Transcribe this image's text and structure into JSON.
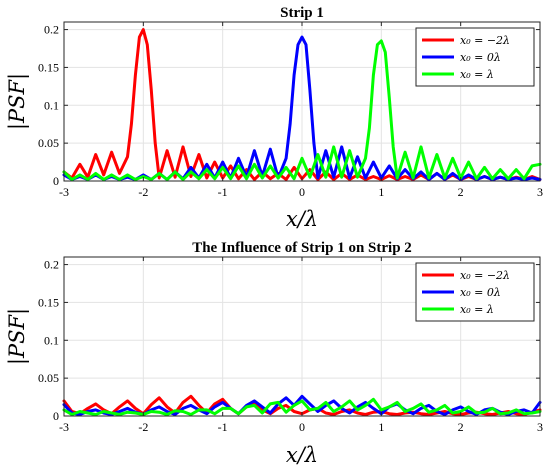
{
  "chart_data": [
    {
      "type": "line",
      "title": "Strip 1",
      "xlabel": "x/λ",
      "ylabel": "|PSF|",
      "xlim": [
        -3,
        3
      ],
      "ylim": [
        0,
        0.21
      ],
      "xticks": [
        "-3",
        "-2",
        "-1",
        "0",
        "1",
        "2",
        "3"
      ],
      "yticks": [
        "0",
        "0.05",
        "0.1",
        "0.15",
        "0.2"
      ],
      "grid": true,
      "legend_position": "top-right",
      "series": [
        {
          "name": "x₀ = −2λ",
          "color": "#ff0000",
          "x": [
            -3,
            -2.9,
            -2.8,
            -2.7,
            -2.6,
            -2.5,
            -2.4,
            -2.3,
            -2.2,
            -2.15,
            -2.1,
            -2.05,
            -2.0,
            -1.95,
            -1.9,
            -1.85,
            -1.8,
            -1.7,
            -1.6,
            -1.5,
            -1.4,
            -1.3,
            -1.2,
            -1.1,
            -1.0,
            -0.9,
            -0.8,
            -0.7,
            -0.6,
            -0.5,
            -0.4,
            -0.3,
            -0.2,
            -0.1,
            0,
            0.1,
            0.2,
            0.3,
            0.4,
            0.5,
            0.6,
            0.7,
            0.8,
            0.9,
            1.0,
            1.1,
            1.2,
            1.3,
            1.4,
            1.5,
            1.6,
            1.7,
            1.8,
            1.9,
            2.0,
            2.1,
            2.2,
            2.3,
            2.4,
            2.5,
            2.6,
            2.7,
            2.8,
            2.9,
            3.0
          ],
          "y": [
            0.012,
            0.004,
            0.022,
            0.005,
            0.035,
            0.008,
            0.038,
            0.01,
            0.032,
            0.075,
            0.14,
            0.19,
            0.2,
            0.18,
            0.12,
            0.05,
            0.004,
            0.04,
            0.005,
            0.045,
            0.006,
            0.035,
            0.004,
            0.025,
            0.004,
            0.02,
            0.003,
            0.015,
            0.002,
            0.012,
            0.003,
            0.01,
            0.002,
            0.018,
            0.003,
            0.015,
            0.002,
            0.012,
            0.002,
            0.01,
            0.002,
            0.008,
            0.002,
            0.006,
            0.002,
            0.007,
            0.002,
            0.006,
            0.002,
            0.008,
            0.002,
            0.01,
            0.002,
            0.008,
            0.002,
            0.006,
            0.002,
            0.006,
            0.002,
            0.005,
            0.002,
            0.005,
            0.002,
            0.006,
            0.002
          ]
        },
        {
          "name": "x₀ = 0λ",
          "color": "#0000ff",
          "x": [
            -3,
            -2.9,
            -2.8,
            -2.7,
            -2.6,
            -2.5,
            -2.4,
            -2.3,
            -2.2,
            -2.1,
            -2.0,
            -1.9,
            -1.8,
            -1.7,
            -1.6,
            -1.5,
            -1.4,
            -1.3,
            -1.2,
            -1.1,
            -1.0,
            -0.9,
            -0.8,
            -0.7,
            -0.6,
            -0.5,
            -0.4,
            -0.3,
            -0.2,
            -0.15,
            -0.1,
            -0.05,
            0,
            0.05,
            0.1,
            0.15,
            0.2,
            0.3,
            0.4,
            0.5,
            0.6,
            0.7,
            0.8,
            0.9,
            1.0,
            1.1,
            1.2,
            1.3,
            1.4,
            1.5,
            1.6,
            1.7,
            1.8,
            1.9,
            2.0,
            2.1,
            2.2,
            2.3,
            2.4,
            2.5,
            2.6,
            2.7,
            2.8,
            2.9,
            3.0
          ],
          "y": [
            0.008,
            0.002,
            0.006,
            0.002,
            0.008,
            0.002,
            0.006,
            0.002,
            0.005,
            0.002,
            0.008,
            0.002,
            0.01,
            0.002,
            0.012,
            0.003,
            0.018,
            0.004,
            0.022,
            0.004,
            0.025,
            0.004,
            0.03,
            0.005,
            0.04,
            0.006,
            0.042,
            0.004,
            0.03,
            0.075,
            0.14,
            0.18,
            0.19,
            0.18,
            0.12,
            0.05,
            0.004,
            0.04,
            0.005,
            0.045,
            0.004,
            0.032,
            0.004,
            0.025,
            0.004,
            0.02,
            0.003,
            0.015,
            0.003,
            0.012,
            0.002,
            0.01,
            0.002,
            0.01,
            0.002,
            0.008,
            0.002,
            0.006,
            0.002,
            0.005,
            0.002,
            0.004,
            0.002,
            0.004,
            0.002
          ]
        },
        {
          "name": "x₀ = λ",
          "color": "#00ff00",
          "x": [
            -3,
            -2.9,
            -2.8,
            -2.7,
            -2.6,
            -2.5,
            -2.4,
            -2.3,
            -2.2,
            -2.1,
            -2.0,
            -1.9,
            -1.8,
            -1.7,
            -1.6,
            -1.5,
            -1.4,
            -1.3,
            -1.2,
            -1.1,
            -1.0,
            -0.9,
            -0.8,
            -0.7,
            -0.6,
            -0.5,
            -0.4,
            -0.3,
            -0.2,
            -0.1,
            0,
            0.1,
            0.2,
            0.3,
            0.4,
            0.5,
            0.6,
            0.7,
            0.8,
            0.85,
            0.9,
            0.95,
            1.0,
            1.05,
            1.1,
            1.15,
            1.2,
            1.3,
            1.4,
            1.5,
            1.6,
            1.7,
            1.8,
            1.9,
            2.0,
            2.1,
            2.2,
            2.3,
            2.4,
            2.5,
            2.6,
            2.7,
            2.8,
            2.9,
            3.0
          ],
          "y": [
            0.012,
            0.002,
            0.008,
            0.002,
            0.01,
            0.002,
            0.008,
            0.002,
            0.008,
            0.002,
            0.006,
            0.002,
            0.01,
            0.002,
            0.012,
            0.002,
            0.012,
            0.003,
            0.015,
            0.003,
            0.018,
            0.003,
            0.02,
            0.003,
            0.022,
            0.004,
            0.02,
            0.004,
            0.018,
            0.003,
            0.03,
            0.005,
            0.035,
            0.005,
            0.045,
            0.005,
            0.04,
            0.005,
            0.03,
            0.07,
            0.14,
            0.18,
            0.185,
            0.17,
            0.11,
            0.045,
            0.004,
            0.038,
            0.004,
            0.045,
            0.004,
            0.035,
            0.004,
            0.03,
            0.004,
            0.025,
            0.003,
            0.018,
            0.003,
            0.015,
            0.003,
            0.015,
            0.003,
            0.02,
            0.022
          ]
        }
      ]
    },
    {
      "type": "line",
      "title": "The Influence of Strip 1 on Strip 2",
      "xlabel": "x/λ",
      "ylabel": "|PSF|",
      "xlim": [
        -3,
        3
      ],
      "ylim": [
        0,
        0.21
      ],
      "xticks": [
        "-3",
        "-2",
        "-1",
        "0",
        "1",
        "2",
        "3"
      ],
      "yticks": [
        "0",
        "0.05",
        "0.1",
        "0.15",
        "0.2"
      ],
      "grid": true,
      "legend_position": "top-right",
      "series": [
        {
          "name": "x₀ = −2λ",
          "color": "#ff0000",
          "x": [
            -3,
            -2.9,
            -2.8,
            -2.7,
            -2.6,
            -2.5,
            -2.4,
            -2.3,
            -2.2,
            -2.1,
            -2.0,
            -1.9,
            -1.8,
            -1.7,
            -1.6,
            -1.5,
            -1.4,
            -1.3,
            -1.2,
            -1.1,
            -1.0,
            -0.9,
            -0.8,
            -0.7,
            -0.6,
            -0.5,
            -0.4,
            -0.3,
            -0.2,
            -0.1,
            0,
            0.1,
            0.2,
            0.3,
            0.4,
            0.5,
            0.6,
            0.7,
            0.8,
            0.9,
            1.0,
            1.1,
            1.2,
            1.3,
            1.4,
            1.5,
            1.6,
            1.7,
            1.8,
            1.9,
            2.0,
            2.1,
            2.2,
            2.3,
            2.4,
            2.5,
            2.6,
            2.7,
            2.8,
            2.9,
            3.0
          ],
          "y": [
            0.02,
            0.006,
            0.003,
            0.01,
            0.016,
            0.008,
            0.003,
            0.012,
            0.02,
            0.01,
            0.003,
            0.015,
            0.024,
            0.012,
            0.004,
            0.018,
            0.026,
            0.014,
            0.004,
            0.016,
            0.022,
            0.01,
            0.003,
            0.012,
            0.018,
            0.008,
            0.003,
            0.01,
            0.014,
            0.006,
            0.003,
            0.008,
            0.01,
            0.004,
            0.002,
            0.006,
            0.008,
            0.004,
            0.002,
            0.005,
            0.006,
            0.003,
            0.002,
            0.004,
            0.005,
            0.003,
            0.002,
            0.004,
            0.006,
            0.003,
            0.002,
            0.004,
            0.005,
            0.003,
            0.002,
            0.004,
            0.006,
            0.003,
            0.002,
            0.005,
            0.008
          ]
        },
        {
          "name": "x₀ = 0λ",
          "color": "#0000ff",
          "x": [
            -3,
            -2.9,
            -2.8,
            -2.7,
            -2.6,
            -2.5,
            -2.4,
            -2.3,
            -2.2,
            -2.1,
            -2.0,
            -1.9,
            -1.8,
            -1.7,
            -1.6,
            -1.5,
            -1.4,
            -1.3,
            -1.2,
            -1.1,
            -1.0,
            -0.9,
            -0.8,
            -0.7,
            -0.6,
            -0.5,
            -0.4,
            -0.3,
            -0.2,
            -0.1,
            0,
            0.1,
            0.2,
            0.3,
            0.4,
            0.5,
            0.6,
            0.7,
            0.8,
            0.9,
            1.0,
            1.1,
            1.2,
            1.3,
            1.4,
            1.5,
            1.6,
            1.7,
            1.8,
            1.9,
            2.0,
            2.1,
            2.2,
            2.3,
            2.4,
            2.5,
            2.6,
            2.7,
            2.8,
            2.9,
            3.0
          ],
          "y": [
            0.015,
            0.004,
            0.002,
            0.006,
            0.008,
            0.004,
            0.002,
            0.006,
            0.01,
            0.005,
            0.002,
            0.008,
            0.012,
            0.006,
            0.002,
            0.01,
            0.014,
            0.008,
            0.003,
            0.012,
            0.018,
            0.01,
            0.003,
            0.014,
            0.02,
            0.012,
            0.004,
            0.016,
            0.024,
            0.014,
            0.026,
            0.016,
            0.006,
            0.014,
            0.02,
            0.01,
            0.004,
            0.012,
            0.018,
            0.01,
            0.003,
            0.012,
            0.016,
            0.008,
            0.003,
            0.01,
            0.014,
            0.006,
            0.002,
            0.008,
            0.012,
            0.006,
            0.002,
            0.008,
            0.01,
            0.005,
            0.002,
            0.006,
            0.008,
            0.004,
            0.018
          ]
        },
        {
          "name": "x₀ = λ",
          "color": "#00ff00",
          "x": [
            -3,
            -2.9,
            -2.8,
            -2.7,
            -2.6,
            -2.5,
            -2.4,
            -2.3,
            -2.2,
            -2.1,
            -2.0,
            -1.9,
            -1.8,
            -1.7,
            -1.6,
            -1.5,
            -1.4,
            -1.3,
            -1.2,
            -1.1,
            -1.0,
            -0.9,
            -0.8,
            -0.7,
            -0.6,
            -0.5,
            -0.4,
            -0.3,
            -0.2,
            -0.1,
            0,
            0.1,
            0.2,
            0.3,
            0.4,
            0.5,
            0.6,
            0.7,
            0.8,
            0.9,
            1.0,
            1.1,
            1.2,
            1.3,
            1.4,
            1.5,
            1.6,
            1.7,
            1.8,
            1.9,
            2.0,
            2.1,
            2.2,
            2.3,
            2.4,
            2.5,
            2.6,
            2.7,
            2.8,
            2.9,
            3.0
          ],
          "y": [
            0.008,
            0.002,
            0.006,
            0.004,
            0.002,
            0.006,
            0.004,
            0.002,
            0.005,
            0.004,
            0.002,
            0.006,
            0.005,
            0.002,
            0.007,
            0.006,
            0.002,
            0.008,
            0.008,
            0.003,
            0.01,
            0.01,
            0.003,
            0.012,
            0.014,
            0.004,
            0.016,
            0.018,
            0.005,
            0.014,
            0.02,
            0.008,
            0.01,
            0.018,
            0.006,
            0.012,
            0.02,
            0.008,
            0.014,
            0.022,
            0.008,
            0.012,
            0.018,
            0.006,
            0.01,
            0.016,
            0.005,
            0.008,
            0.014,
            0.004,
            0.006,
            0.012,
            0.004,
            0.005,
            0.01,
            0.003,
            0.004,
            0.008,
            0.003,
            0.004,
            0.006
          ]
        }
      ]
    }
  ]
}
